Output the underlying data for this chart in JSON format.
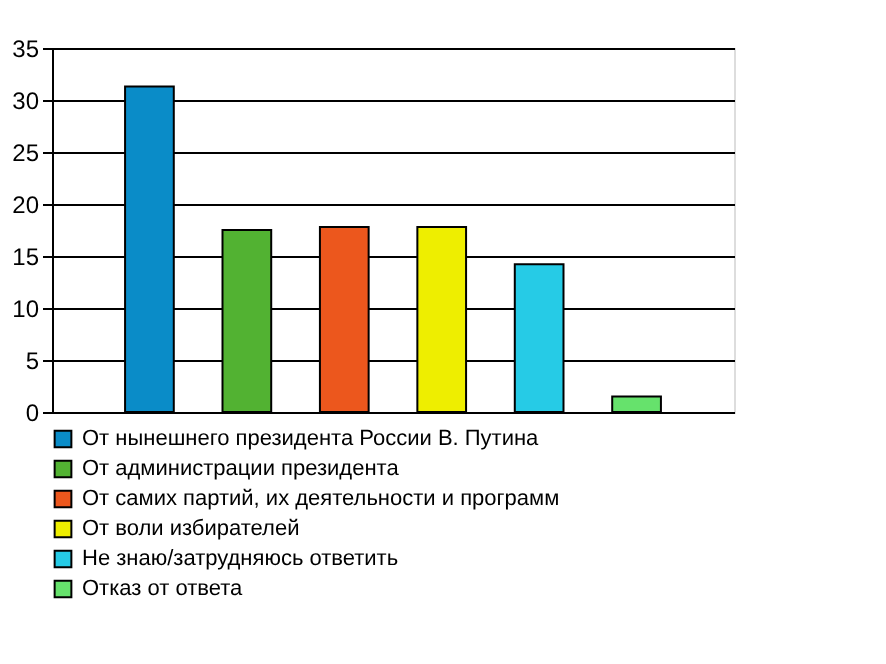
{
  "chart_data": {
    "type": "bar",
    "categories": [
      null
    ],
    "series": [
      {
        "name": "От нынешнего президента России В. Путина",
        "color": "#0a8cc8",
        "values": [
          31.3
        ]
      },
      {
        "name": "От администрации президента",
        "color": "#52b232",
        "values": [
          17.5
        ]
      },
      {
        "name": "От самих партий, их деятельности и программ",
        "color": "#ec571d",
        "values": [
          17.8
        ]
      },
      {
        "name": "От воли избирателей",
        "color": "#eeee00",
        "values": [
          17.8
        ]
      },
      {
        "name": "Не знаю/затрудняюсь ответить",
        "color": "#26cbe6",
        "values": [
          14.2
        ]
      },
      {
        "name": "Отказ от ответа",
        "color": "#66e26c",
        "values": [
          1.5
        ]
      }
    ],
    "ylim": [
      0,
      35
    ],
    "yticks": [
      0,
      5,
      10,
      15,
      20,
      25,
      30,
      35
    ],
    "grid": "y",
    "legend": "bottom"
  }
}
